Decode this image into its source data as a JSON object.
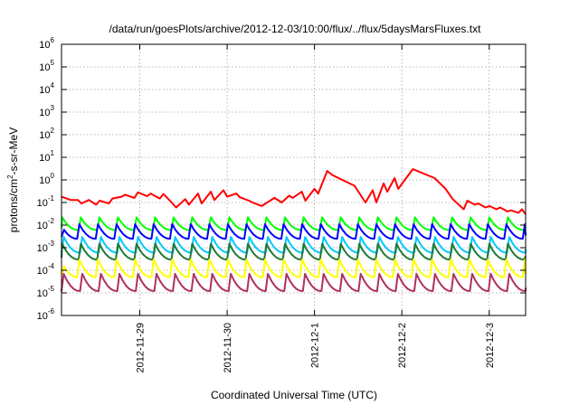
{
  "chart_data": {
    "type": "line",
    "title": "/data/run/goesPlots/archive/2012-12-03/10:00/flux/../flux/5daysMarsFluxes.txt",
    "xlabel": "Coordinated Universal Time (UTC)",
    "ylabel": {
      "base": "protons/cm",
      "sup": "2",
      "rest": "-s-sr-MeV"
    },
    "xlim": [
      "2012-11-28T02:30",
      "2012-12-03T10:00"
    ],
    "ylim": [
      1e-06,
      1000000.0
    ],
    "yscale": "log",
    "grid": true,
    "x_ticks": [
      "2012-11-29",
      "2012-11-30",
      "2012-12-1",
      "2012-12-2",
      "2012-12-3"
    ],
    "y_ticks": [
      {
        "base": "10",
        "exp": "-6"
      },
      {
        "base": "10",
        "exp": "-5"
      },
      {
        "base": "10",
        "exp": "-4"
      },
      {
        "base": "10",
        "exp": "-3"
      },
      {
        "base": "10",
        "exp": "-2"
      },
      {
        "base": "10",
        "exp": "-1"
      },
      {
        "base": "10",
        "exp": "0"
      },
      {
        "base": "10",
        "exp": "1"
      },
      {
        "base": "10",
        "exp": "2"
      },
      {
        "base": "10",
        "exp": "3"
      },
      {
        "base": "10",
        "exp": "4"
      },
      {
        "base": "10",
        "exp": "5"
      },
      {
        "base": "10",
        "exp": "6"
      }
    ],
    "series": [
      {
        "color": "#ff0000",
        "x": [
          "2012-11-28T02:30",
          "2012-11-28T05:00",
          "2012-11-28T07:00",
          "2012-11-28T08:00",
          "2012-11-28T10:00",
          "2012-11-28T12:00",
          "2012-11-28T13:00",
          "2012-11-28T15:30",
          "2012-11-28T16:30",
          "2012-11-28T19:00",
          "2012-11-28T20:00",
          "2012-11-28T22:30",
          "2012-11-28T23:30",
          "2012-11-29T02:00",
          "2012-11-29T03:00",
          "2012-11-29T05:30",
          "2012-11-29T06:30",
          "2012-11-29T09:00",
          "2012-11-29T10:00",
          "2012-11-29T12:30",
          "2012-11-29T13:30",
          "2012-11-29T16:00",
          "2012-11-29T17:00",
          "2012-11-29T19:30",
          "2012-11-29T20:30",
          "2012-11-29T23:00",
          "2012-11-30T00:00",
          "2012-11-30T02:30",
          "2012-11-30T03:30",
          "2012-11-30T06:00",
          "2012-11-30T07:00",
          "2012-11-30T09:30",
          "2012-11-30T13:00",
          "2012-11-30T15:00",
          "2012-11-30T17:00",
          "2012-11-30T18:00",
          "2012-11-30T20:30",
          "2012-11-30T21:30",
          "2012-12-01T00:00",
          "2012-12-01T01:00",
          "2012-12-01T03:30",
          "2012-12-01T05:00",
          "2012-12-01T11:00",
          "2012-12-01T14:00",
          "2012-12-01T16:00",
          "2012-12-01T17:00",
          "2012-12-01T19:00",
          "2012-12-01T20:00",
          "2012-12-01T22:00",
          "2012-12-01T23:00",
          "2012-12-02T03:00",
          "2012-12-02T09:00",
          "2012-12-02T12:00",
          "2012-12-02T14:00",
          "2012-12-02T17:00",
          "2012-12-02T18:00",
          "2012-12-02T20:00",
          "2012-12-02T21:00",
          "2012-12-02T23:00",
          "2012-12-03T00:00",
          "2012-12-03T02:00",
          "2012-12-03T03:00",
          "2012-12-03T05:00",
          "2012-12-03T06:00",
          "2012-12-03T08:00",
          "2012-12-03T09:00",
          "2012-12-03T10:00"
        ],
        "y": [
          0.18,
          0.13,
          0.13,
          0.09,
          0.13,
          0.08,
          0.12,
          0.09,
          0.15,
          0.18,
          0.22,
          0.16,
          0.28,
          0.19,
          0.25,
          0.15,
          0.24,
          0.09,
          0.06,
          0.14,
          0.08,
          0.25,
          0.09,
          0.3,
          0.13,
          0.35,
          0.18,
          0.25,
          0.17,
          0.12,
          0.1,
          0.07,
          0.16,
          0.1,
          0.2,
          0.16,
          0.3,
          0.12,
          0.4,
          0.25,
          2.5,
          1.6,
          0.55,
          0.1,
          0.35,
          0.1,
          0.7,
          0.3,
          1.2,
          0.4,
          3.0,
          1.2,
          0.4,
          0.14,
          0.05,
          0.12,
          0.08,
          0.09,
          0.06,
          0.07,
          0.05,
          0.06,
          0.04,
          0.045,
          0.035,
          0.05,
          0.03
        ]
      },
      {
        "color": "#00ff00",
        "x": [
          "2012-11-28T02:30",
          "2012-12-03T10:00"
        ],
        "y_low": 0.006,
        "y_high": 0.022,
        "cycle_hours": 5.1,
        "rise_hours": 0.6
      },
      {
        "color": "#0000ff",
        "x": [
          "2012-11-28T02:30",
          "2012-12-03T10:00"
        ],
        "y_low": 0.0025,
        "y_high": 0.011,
        "cycle_hours": 5.1,
        "rise_hours": 0.6
      },
      {
        "color": "#00c8ff",
        "x": [
          "2012-11-28T02:30",
          "2012-12-03T10:00"
        ],
        "y_low": 0.0006,
        "y_high": 0.003,
        "cycle_hours": 5.1,
        "rise_hours": 0.6
      },
      {
        "color": "#1f7a33",
        "x": [
          "2012-11-28T02:30",
          "2012-12-03T10:00"
        ],
        "y_low": 0.0003,
        "y_high": 0.0015,
        "cycle_hours": 5.1,
        "rise_hours": 0.6
      },
      {
        "color": "#ffff00",
        "x": [
          "2012-11-28T02:30",
          "2012-12-03T10:00"
        ],
        "y_low": 5e-05,
        "y_high": 0.0003,
        "cycle_hours": 5.1,
        "rise_hours": 0.6
      },
      {
        "color": "#b03060",
        "x": [
          "2012-11-28T02:30",
          "2012-12-03T10:00"
        ],
        "y_low": 1.2e-05,
        "y_high": 7e-05,
        "cycle_hours": 5.1,
        "rise_hours": 0.6
      }
    ]
  }
}
